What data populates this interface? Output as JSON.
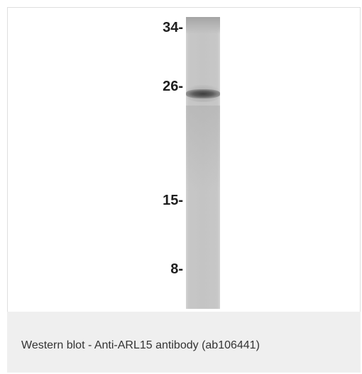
{
  "figure": {
    "markers": [
      {
        "label": "34-"
      },
      {
        "label": "26-"
      },
      {
        "label": "15-"
      },
      {
        "label": "8-"
      }
    ]
  },
  "caption": {
    "text": "Western blot - Anti-ARL15 antibody (ab106441)"
  }
}
